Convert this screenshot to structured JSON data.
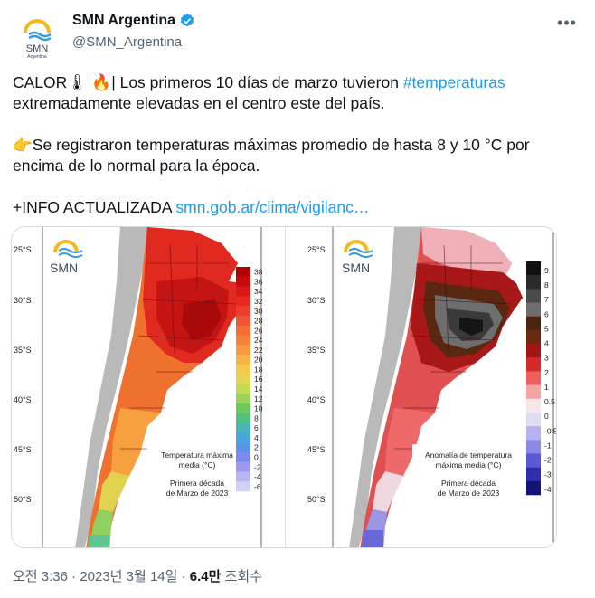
{
  "author": {
    "display_name": "SMN Argentina",
    "handle": "@SMN_Argentina",
    "avatar_logo_text": "SMN",
    "avatar_small_text": "Argentina",
    "verified_icon": "verified-badge-icon"
  },
  "more_button_icon": "more-options-icon",
  "tweet": {
    "line1_prefix": "CALOR",
    "line1_mid": "| Los primeros 10 días de marzo tuvieron ",
    "hashtag": "#temperaturas",
    "line1_suffix": "extremadamente elevadas en el centro este del país.",
    "line2": "Se registraron temperaturas máximas promedio de hasta 8 y 10 °C por encima de lo normal para la época.",
    "line3_prefix": "+INFO ACTUALIZADA ",
    "link": "smn.gob.ar/clima/vigilanc…",
    "emoji_thermometer": "🌡",
    "emoji_fire": "🔥",
    "emoji_pointing": "👉"
  },
  "media": {
    "left": {
      "logo": "SMN",
      "lat_labels": [
        "25°S",
        "30°S",
        "35°S",
        "40°S",
        "45°S",
        "50°S"
      ],
      "legend_values": [
        "38",
        "36",
        "34",
        "32",
        "30",
        "28",
        "26",
        "24",
        "22",
        "20",
        "18",
        "16",
        "14",
        "12",
        "10",
        "8",
        "6",
        "4",
        "2",
        "0",
        "-2",
        "-4",
        "-6"
      ],
      "legend_colors": [
        "#b30000",
        "#c80a0a",
        "#d81818",
        "#e62a22",
        "#ee3d2a",
        "#f25330",
        "#f56a35",
        "#f8823a",
        "#fa9a40",
        "#fbb348",
        "#f6c94c",
        "#e4d64e",
        "#c2dc52",
        "#9ad45a",
        "#6cc85e",
        "#52c080",
        "#48b7b4",
        "#4aa6dc",
        "#5b93e8",
        "#7a8aee",
        "#9a9af0",
        "#b8b6f2",
        "#d2d0f6"
      ],
      "title_line1": "Temperatura máxima",
      "title_line2": "media (°C)",
      "title_line3": "Primera década",
      "title_line4": "de Marzo de 2023"
    },
    "right": {
      "logo": "SMN",
      "lat_labels": [
        "25°S",
        "30°S",
        "35°S",
        "40°S",
        "45°S",
        "50°S"
      ],
      "legend_values": [
        "9",
        "8",
        "7",
        "6",
        "5",
        "4",
        "3",
        "2",
        "1",
        "0.5",
        "0",
        "-0.5",
        "-1",
        "-2",
        "-3",
        "-4"
      ],
      "legend_colors": [
        "#111111",
        "#2a2a2a",
        "#4a4a4a",
        "#6e6e6e",
        "#4a2412",
        "#6b2a10",
        "#a31515",
        "#d42a2a",
        "#ee6060",
        "#f4a4a4",
        "#f5e6ea",
        "#e0dcf2",
        "#b6b2ec",
        "#8c88e4",
        "#5a58d2",
        "#2f2fb0",
        "#141478"
      ],
      "title_line1": "Anomalía de temperatura",
      "title_line2": "máxima media (°C)",
      "title_line3": "Primera década",
      "title_line4": "de Marzo de 2023"
    }
  },
  "meta": {
    "time": "오전 3:36",
    "date": "2023년 3월 14일",
    "views_count": "6.4만",
    "views_label": " 조회수",
    "separator": " · "
  }
}
